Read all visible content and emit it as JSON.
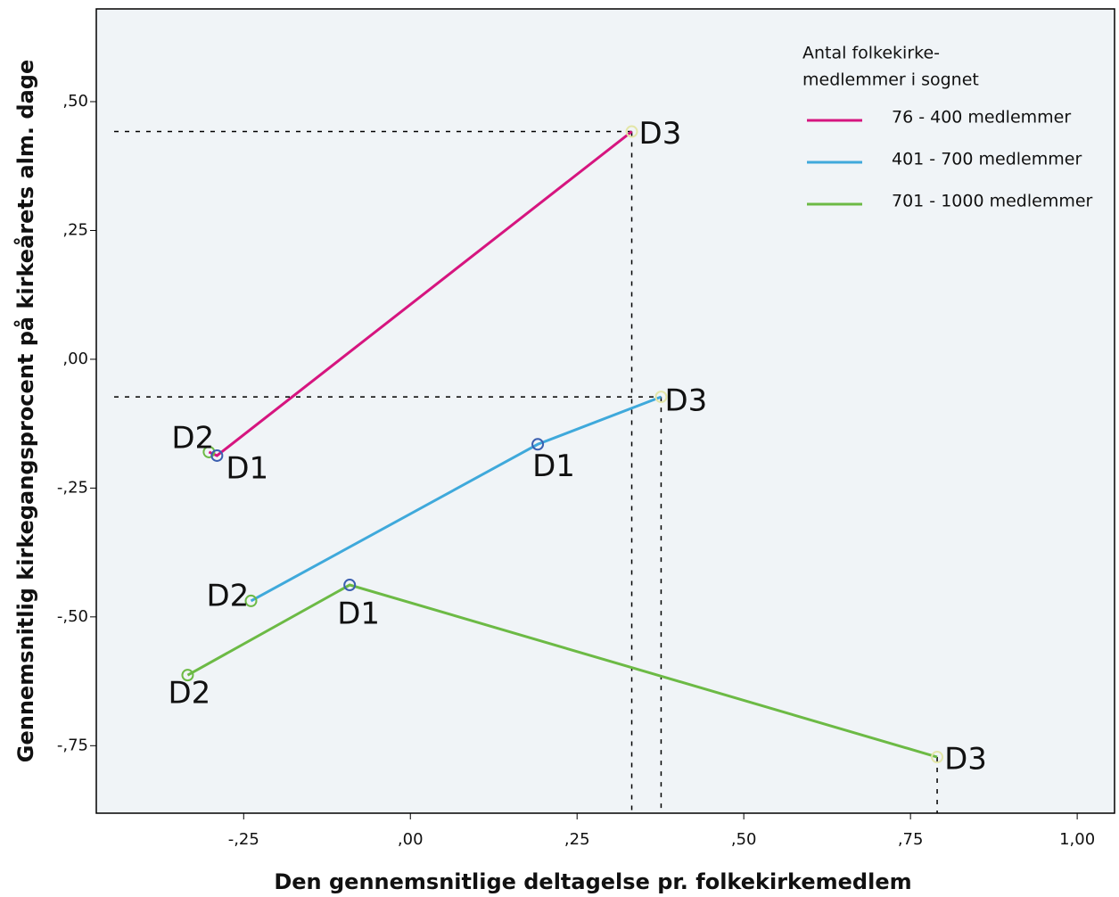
{
  "chart_data": {
    "type": "line",
    "x_label": "Den gennemsnitlige deltagelse pr. folkekirkemedlem",
    "y_label": "Gennemsnitlig kirkegangsprocent på kirkeårets alm. dage",
    "legend_title": [
      "Antal folkekirke-",
      "medlemmer i sognet"
    ],
    "legend_position": "upper right",
    "point_labels": [
      "D2",
      "D1",
      "D3"
    ],
    "point_colors": [
      "#6cba45",
      "#3b5fb0",
      "#e3e6a8"
    ],
    "series": [
      {
        "name": "76 - 400 medlemmer",
        "color": "#d6157f",
        "x": [
          -0.302,
          -0.29,
          0.332
        ],
        "values": [
          -0.18,
          -0.187,
          0.442
        ],
        "drop_line": "both"
      },
      {
        "name": "401 - 700 medlemmer",
        "color": "#3fa9db",
        "x": [
          -0.239,
          0.191,
          0.376
        ],
        "values": [
          -0.469,
          -0.165,
          -0.073
        ],
        "drop_line": "both"
      },
      {
        "name": "701 - 1000 medlemmer",
        "color": "#6cba45",
        "x": [
          -0.334,
          -0.091,
          0.79
        ],
        "values": [
          -0.613,
          -0.438,
          -0.772
        ],
        "drop_line": "vertical"
      }
    ],
    "xlim": [
      -0.471,
      1.056
    ],
    "ylim": [
      -0.881,
      0.68
    ],
    "xticks": [
      {
        "value": -0.25,
        "label": "-,25"
      },
      {
        "value": 0,
        "label": ",00"
      },
      {
        "value": 0.25,
        "label": ",25"
      },
      {
        "value": 0.5,
        "label": ",50"
      },
      {
        "value": 0.75,
        "label": ",75"
      },
      {
        "value": 1,
        "label": "1,00"
      }
    ],
    "yticks": [
      {
        "value": -0.75,
        "label": "-,75"
      },
      {
        "value": -0.5,
        "label": "-,50"
      },
      {
        "value": -0.25,
        "label": "-,25"
      },
      {
        "value": 0,
        "label": ",00"
      },
      {
        "value": 0.25,
        "label": ",25"
      },
      {
        "value": 0.5,
        "label": ",50"
      }
    ]
  }
}
